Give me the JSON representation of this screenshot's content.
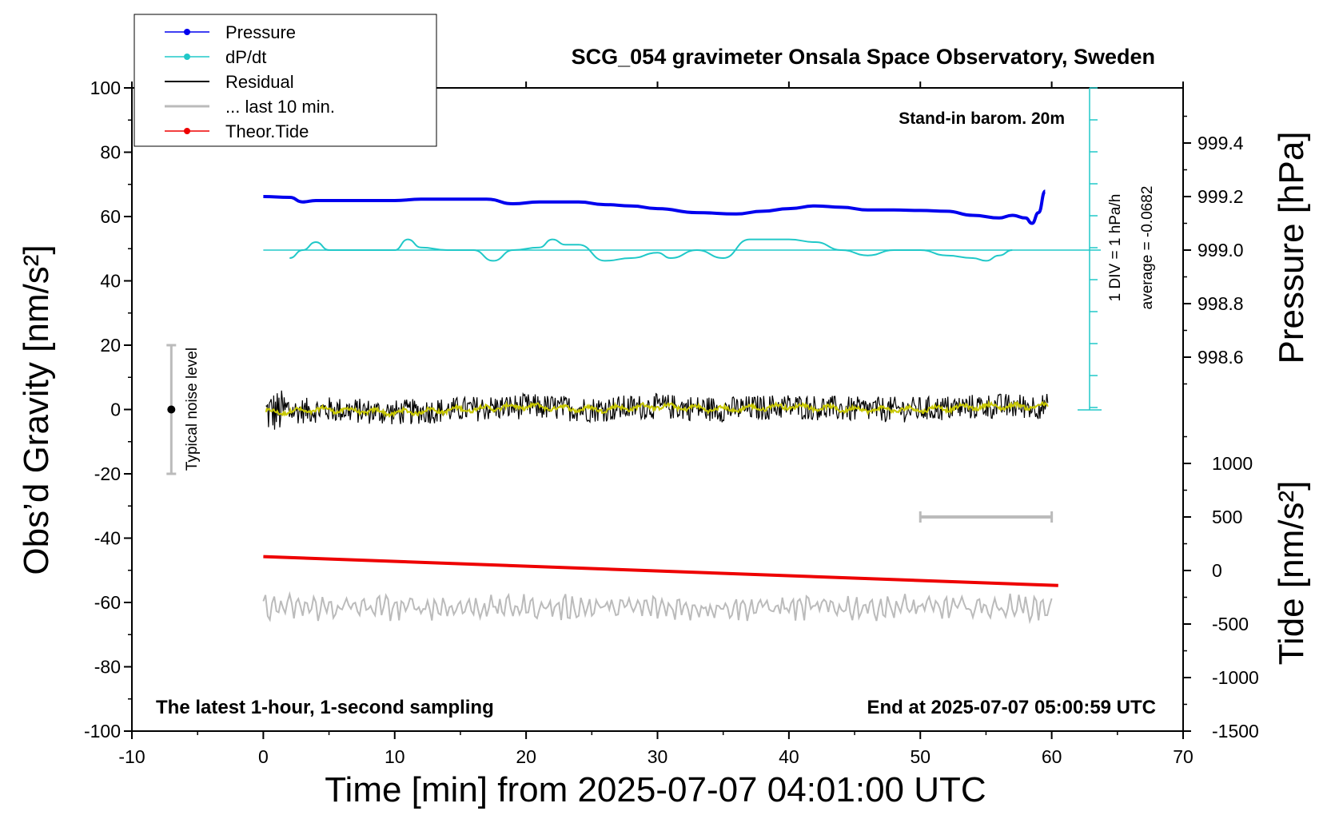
{
  "title": "SCG_054 gravimeter Onsala Space Observatory, Sweden",
  "annotations": {
    "barom": "Stand-in barom. 20m",
    "latest": "The latest 1-hour, 1-second sampling",
    "end": "End at 2025-07-07 05:00:59 UTC",
    "div": "1 DIV = 1 hPa/h",
    "average": "average = -0.0682",
    "noise": "Typical noise level"
  },
  "legend": [
    "Pressure",
    "dP/dt",
    "Residual",
    "... last 10 min.",
    "Theor.Tide"
  ],
  "xlabel": "Time [min] from 2025-07-07 04:01:00 UTC",
  "ylabel_left": "Obs’d Gravity [nm/s²]",
  "ylabel_pressure": "Pressure [hPa]",
  "ylabel_tide": "Tide [nm/s²]",
  "x_ticks": [
    "-10",
    "0",
    "10",
    "20",
    "30",
    "40",
    "50",
    "60",
    "70"
  ],
  "y_ticks": [
    "100",
    "80",
    "60",
    "40",
    "20",
    "0",
    "-20",
    "-40",
    "-60",
    "-80",
    "-100"
  ],
  "pressure_ticks": [
    "999.4",
    "999.2",
    "999.0",
    "998.8",
    "998.6"
  ],
  "tide_ticks": [
    "1000",
    "500",
    "0",
    "-500",
    "-1000",
    "-1500"
  ],
  "colors": {
    "pressure": "#0000ee",
    "dpdt": "#20c8c8",
    "residual": "#000000",
    "smoothed": "#c8c800",
    "last10": "#bbbbbb",
    "tide": "#ee0000"
  },
  "chart_data": {
    "type": "line",
    "title": "SCG_054 gravimeter Onsala Space Observatory, Sweden",
    "xlim": [
      -10,
      70
    ],
    "ylim": [
      -100,
      100
    ],
    "pressure_ylim": [
      998.4,
      999.6
    ],
    "tide_ylim": [
      -1500,
      1500
    ],
    "series": [
      {
        "name": "Pressure",
        "axis": "pressure",
        "x": [
          0,
          2,
          3,
          4,
          6,
          8,
          10,
          12,
          14,
          16,
          17,
          19,
          21,
          24,
          26,
          28,
          30,
          33,
          36,
          38,
          40,
          42,
          44,
          46,
          48,
          50,
          52,
          54,
          56,
          57,
          58,
          58.5,
          59,
          59.5
        ],
        "y": [
          999.2,
          999.197,
          999.18,
          999.185,
          999.185,
          999.185,
          999.185,
          999.19,
          999.19,
          999.19,
          999.19,
          999.173,
          999.18,
          999.18,
          999.17,
          999.165,
          999.155,
          999.14,
          999.135,
          999.145,
          999.155,
          999.165,
          999.16,
          999.15,
          999.15,
          999.148,
          999.145,
          999.13,
          999.12,
          999.13,
          999.12,
          999.1,
          999.14,
          999.22
        ]
      },
      {
        "name": "dP/dt",
        "axis": "pressure",
        "x": [
          2,
          3,
          4,
          5,
          6,
          8,
          10,
          11,
          12,
          14,
          16,
          17.5,
          19,
          21,
          22,
          23,
          24,
          26,
          28,
          30,
          31,
          33,
          35,
          37,
          38,
          40,
          42,
          44,
          46,
          48,
          50,
          52,
          54,
          55,
          56,
          57
        ],
        "y": [
          998.97,
          999.0,
          999.03,
          999.0,
          999.0,
          999.0,
          999.0,
          999.04,
          999.01,
          999.0,
          999.0,
          998.96,
          999.0,
          999.01,
          999.04,
          999.02,
          999.02,
          998.96,
          998.97,
          998.99,
          998.97,
          999.0,
          998.97,
          999.04,
          999.04,
          999.04,
          999.03,
          999.0,
          998.98,
          999.0,
          999.0,
          998.98,
          998.97,
          998.96,
          998.98,
          999.0
        ]
      },
      {
        "name": "Residual",
        "axis": "gravity",
        "x": [
          0,
          5,
          10,
          15,
          20,
          25,
          30,
          35,
          40,
          45,
          50,
          55,
          60
        ],
        "y": [
          -1,
          0,
          -1,
          0,
          1,
          0,
          1,
          0,
          1,
          0,
          0,
          1,
          1
        ]
      },
      {
        "name": "... last 10 min.",
        "axis": "gravity",
        "x": [
          0,
          10,
          20,
          30,
          40,
          50,
          60
        ],
        "y": [
          -62,
          -61,
          -61,
          -61,
          -61,
          -61,
          -61
        ]
      },
      {
        "name": "Theor.Tide",
        "axis": "tide",
        "x": [
          0,
          60.5
        ],
        "y": [
          130,
          -140
        ]
      }
    ],
    "noise_bar": {
      "x": -7,
      "y": 0,
      "range": [
        -20,
        20
      ]
    },
    "last10_bar": {
      "x": [
        50,
        60
      ]
    },
    "dpdt_average": -0.0682
  }
}
